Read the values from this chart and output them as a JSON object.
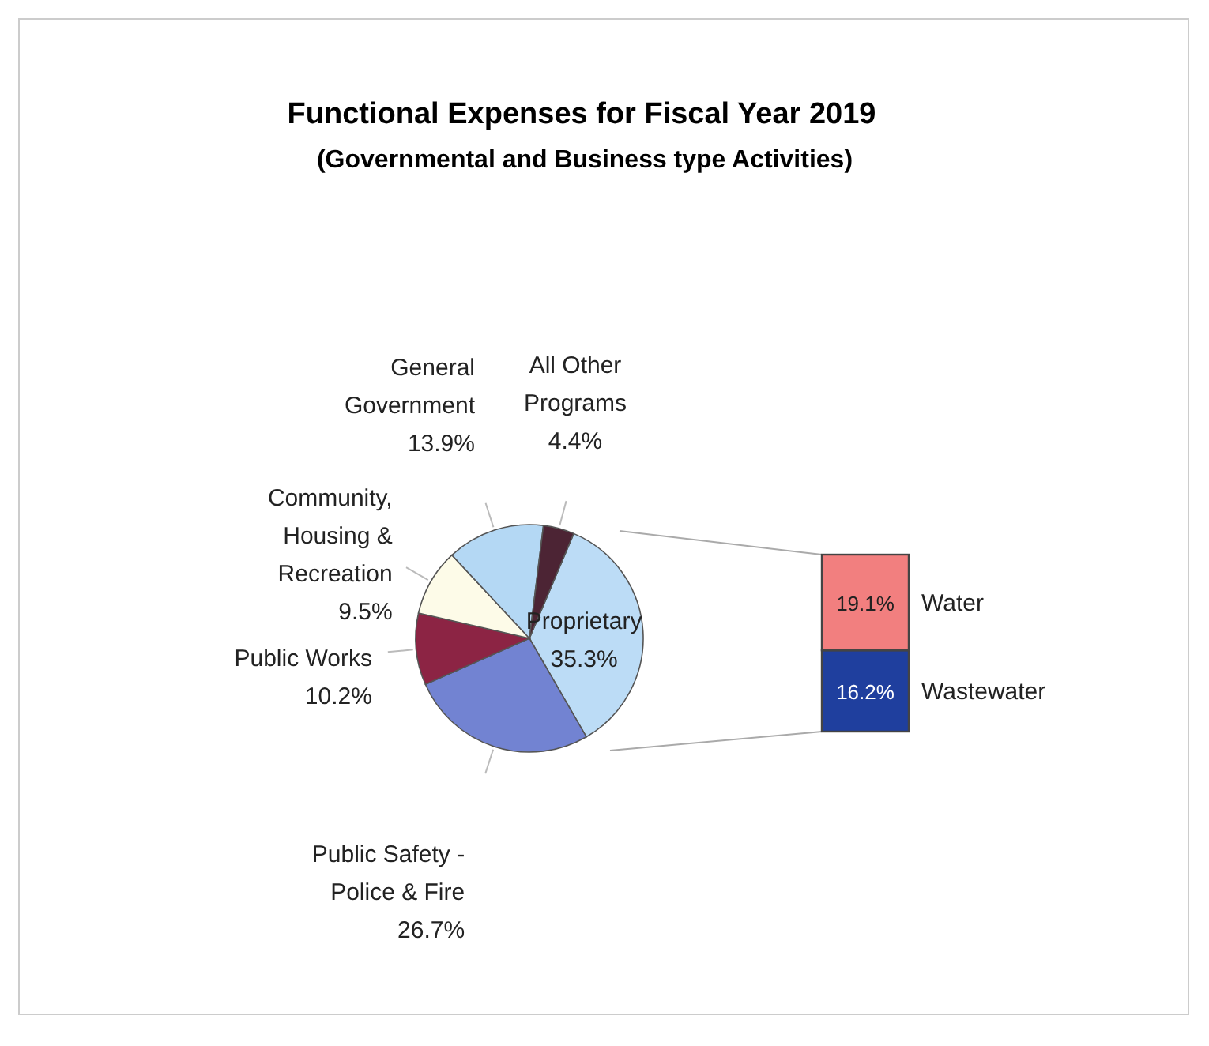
{
  "chart_data": [
    {
      "type": "pie",
      "title": "Functional Expenses for Fiscal Year 2019",
      "subtitle": "(Governmental and Business type Activities)",
      "categories": [
        "Proprietary",
        "Public Safety - Police & Fire",
        "Public Works",
        "Community, Housing & Recreation",
        "General Government",
        "All Other Programs"
      ],
      "values": [
        35.3,
        26.7,
        10.2,
        9.5,
        13.9,
        4.4
      ],
      "colors": [
        "#bcdcf6",
        "#7283d2",
        "#8c2444",
        "#fdfbe8",
        "#b4d8f4",
        "#4c2434"
      ],
      "value_labels": [
        "35.3%",
        "26.7%",
        "10.2%",
        "9.5%",
        "13.9%",
        "4.4%"
      ]
    },
    {
      "type": "bar",
      "stacked": true,
      "categories": [
        null
      ],
      "series": [
        {
          "name": "Wastewater",
          "color": "#1f3f9e",
          "values": [
            16.2
          ],
          "value_labels": [
            "16.2%"
          ]
        },
        {
          "name": "Water",
          "color": "#f27f7f",
          "values": [
            19.1
          ],
          "value_labels": [
            "19.1%"
          ]
        }
      ]
    }
  ]
}
